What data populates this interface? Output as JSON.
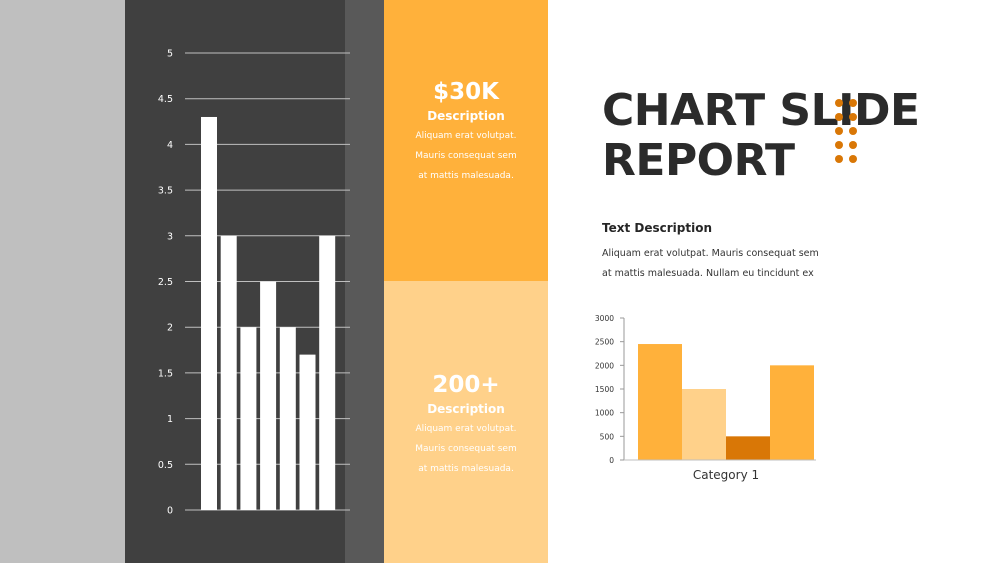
{
  "title_line1": "CHART SLIDE",
  "title_line2": "REPORT",
  "stats": [
    {
      "value": "$30K",
      "label": "Description",
      "desc_lines": [
        "Aliquam erat volutpat.",
        "Mauris consequat sem",
        "at mattis malesuada."
      ]
    },
    {
      "value": "200+",
      "label": "Description",
      "desc_lines": [
        "Aliquam erat volutpat.",
        "Mauris consequat sem",
        "at mattis malesuada."
      ]
    }
  ],
  "text_description": {
    "heading": "Text Description",
    "line1": "Aliquam erat volutpat. Mauris consequat sem",
    "line2": "at mattis malesuada. Nullam eu tincidunt ex"
  },
  "colors": {
    "orange": "#ffb13b",
    "light_orange": "#ffd18a",
    "dark_orange": "#d97706",
    "dark_panel": "#404040"
  },
  "chart_data": [
    {
      "type": "bar",
      "categories": [
        "",
        "",
        "",
        "",
        "",
        "",
        ""
      ],
      "values": [
        4.3,
        3,
        2,
        2.5,
        2,
        1.7,
        3
      ],
      "ylim": [
        0,
        5
      ],
      "yticks": [
        "0",
        "0.5",
        "1",
        "1.5",
        "2",
        "2.5",
        "3",
        "3.5",
        "4",
        "4.5",
        "5"
      ],
      "grid": true,
      "bar_color": "#ffffff"
    },
    {
      "type": "bar",
      "categories": [
        "Category 1"
      ],
      "series": [
        {
          "values": [
            2450
          ],
          "color": "#ffb13b"
        },
        {
          "values": [
            1500
          ],
          "color": "#ffd18a"
        },
        {
          "values": [
            500
          ],
          "color": "#d97706"
        },
        {
          "values": [
            2000
          ],
          "color": "#ffb13b"
        }
      ],
      "ylim": [
        0,
        3000
      ],
      "yticks": [
        "0",
        "500",
        "1000",
        "1500",
        "2000",
        "2500",
        "3000"
      ],
      "grid": false
    }
  ]
}
